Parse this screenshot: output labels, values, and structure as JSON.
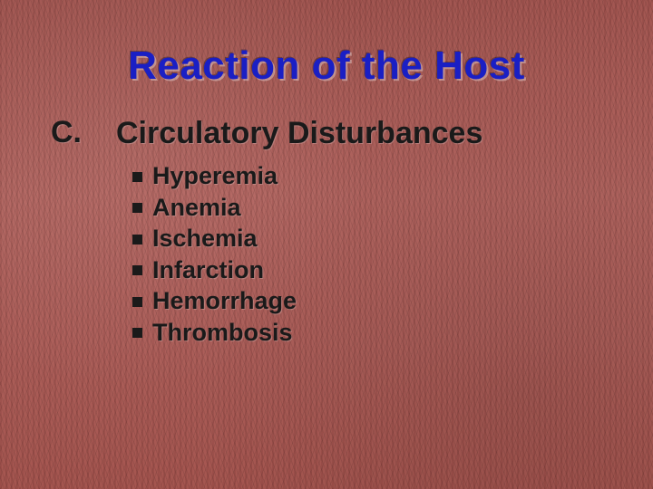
{
  "colors": {
    "title": "#1a1fc4",
    "body_text": "#1a1a1a",
    "bg_base": "#ad5f5a",
    "bullet_square": "#1a1a1a"
  },
  "typography": {
    "title_fontsize": 44,
    "section_fontsize": 34,
    "bullet_fontsize": 27,
    "font_family": "Verdana",
    "weight": "900"
  },
  "title": "Reaction of the Host",
  "section": {
    "letter": "C.",
    "heading": "Circulatory Disturbances",
    "items": [
      "Hyperemia",
      "Anemia",
      "Ischemia",
      "Infarction",
      "Hemorrhage",
      "Thrombosis"
    ]
  }
}
